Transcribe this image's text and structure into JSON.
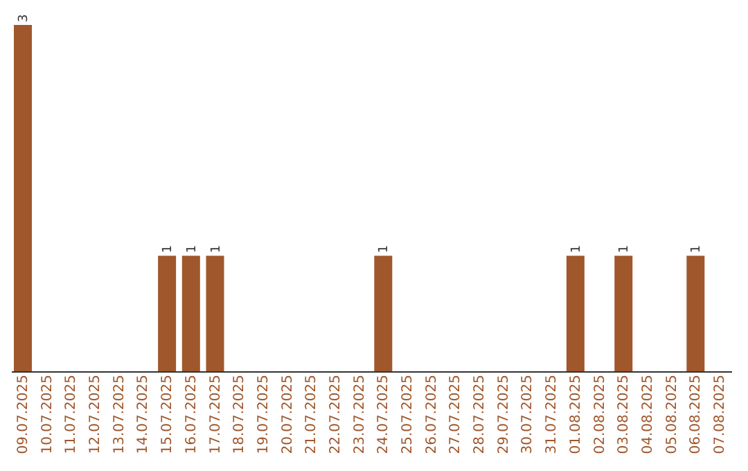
{
  "chart_data": {
    "type": "bar",
    "categories": [
      "09.07.2025",
      "10.07.2025",
      "11.07.2025",
      "12.07.2025",
      "13.07.2025",
      "14.07.2025",
      "15.07.2025",
      "16.07.2025",
      "17.07.2025",
      "18.07.2025",
      "19.07.2025",
      "20.07.2025",
      "21.07.2025",
      "22.07.2025",
      "23.07.2025",
      "24.07.2025",
      "25.07.2025",
      "26.07.2025",
      "27.07.2025",
      "28.07.2025",
      "29.07.2025",
      "30.07.2025",
      "31.07.2025",
      "01.08.2025",
      "02.08.2025",
      "03.08.2025",
      "04.08.2025",
      "05.08.2025",
      "06.08.2025",
      "07.08.2025"
    ],
    "values": [
      3,
      0,
      0,
      0,
      0,
      0,
      1,
      1,
      1,
      0,
      0,
      0,
      0,
      0,
      0,
      1,
      0,
      0,
      0,
      0,
      0,
      0,
      0,
      1,
      0,
      1,
      0,
      0,
      1,
      0
    ],
    "value_labels": [
      "3",
      null,
      null,
      null,
      null,
      null,
      "1",
      "1",
      "1",
      null,
      null,
      null,
      null,
      null,
      null,
      "1",
      null,
      null,
      null,
      null,
      null,
      null,
      null,
      "1",
      null,
      "1",
      null,
      null,
      "1",
      null
    ],
    "color": "#a0572c",
    "tick_labels": "x",
    "grid": false
  }
}
